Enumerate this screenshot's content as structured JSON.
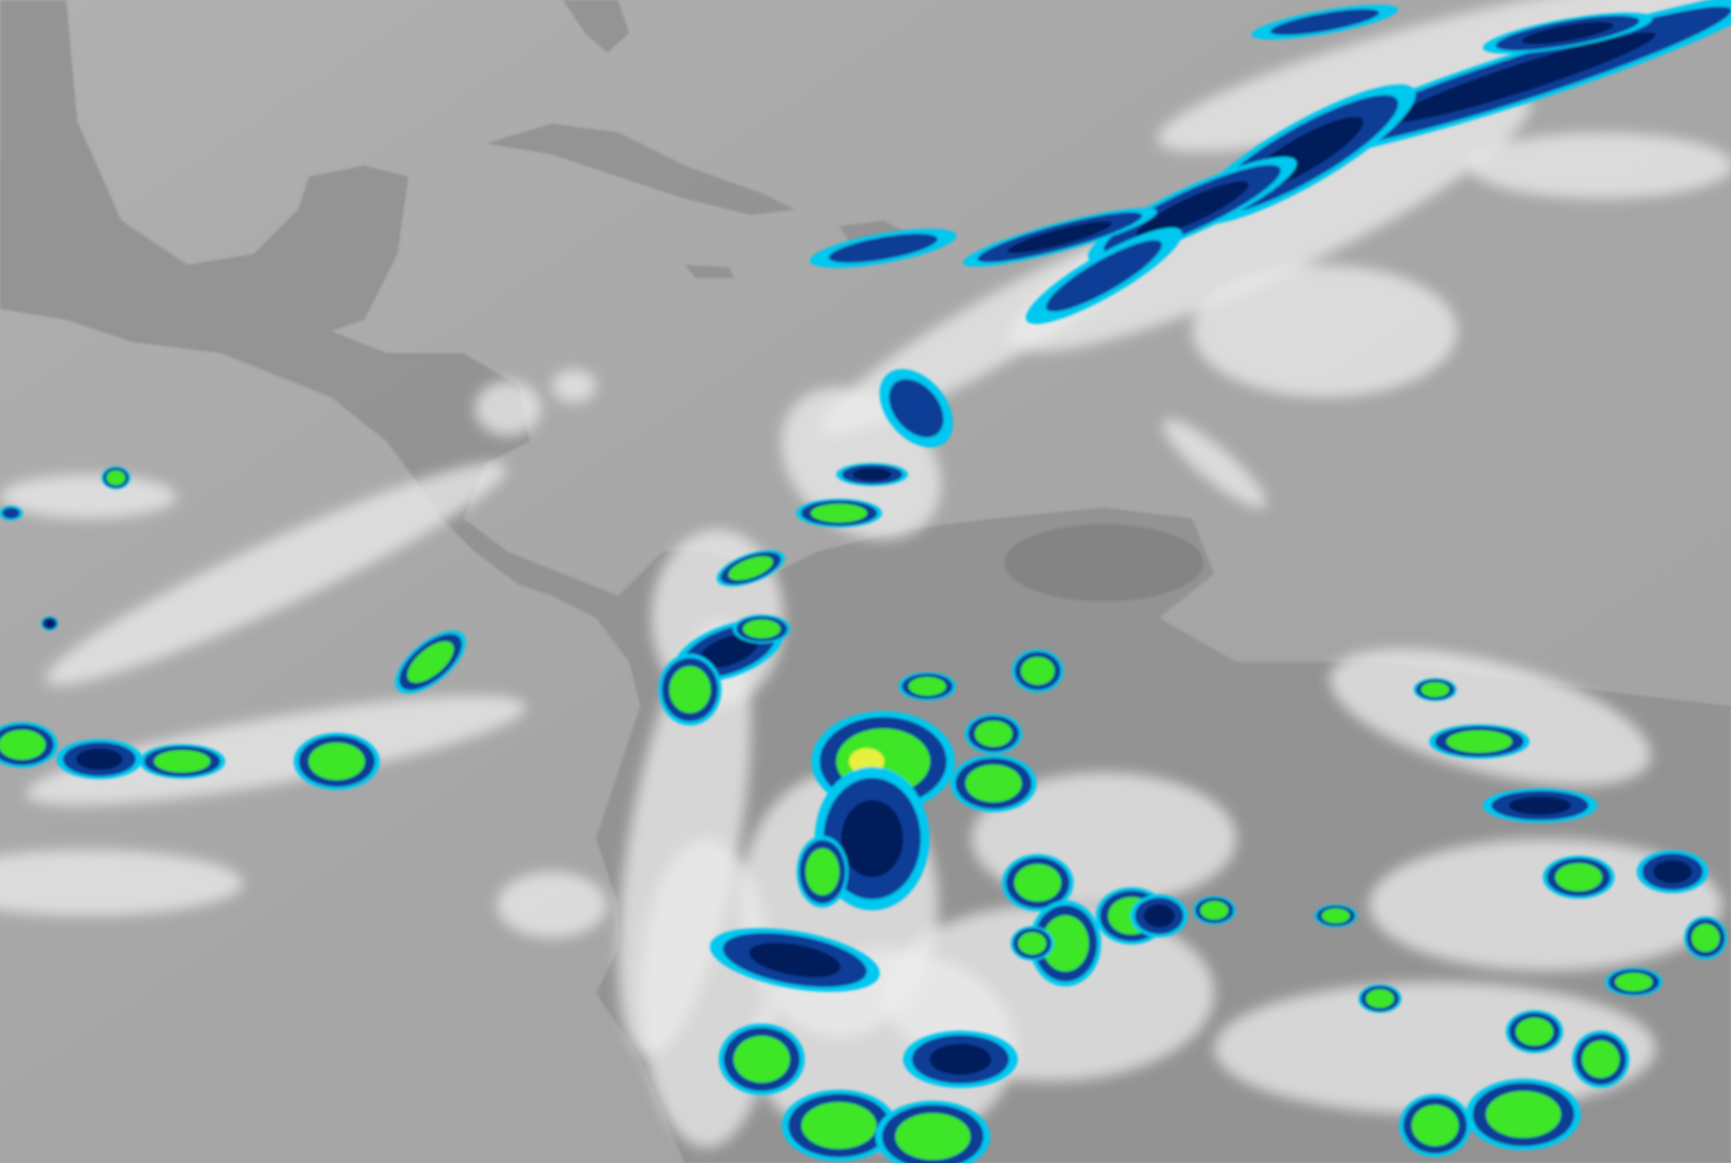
{
  "colors": {
    "ocean": "#a9a9a9",
    "ocean_light": "#b4b4b4",
    "land": "#8f8f8f",
    "land_dark": "#7a7a7a",
    "cloud": "#ececec",
    "cold_top_cyan": "#00c8f0",
    "cold_top_blue": "#0a3c96",
    "cold_top_navy": "#061e5a",
    "coldest_green": "#3ce628",
    "coldest_yellow": "#e6f03c"
  }
}
